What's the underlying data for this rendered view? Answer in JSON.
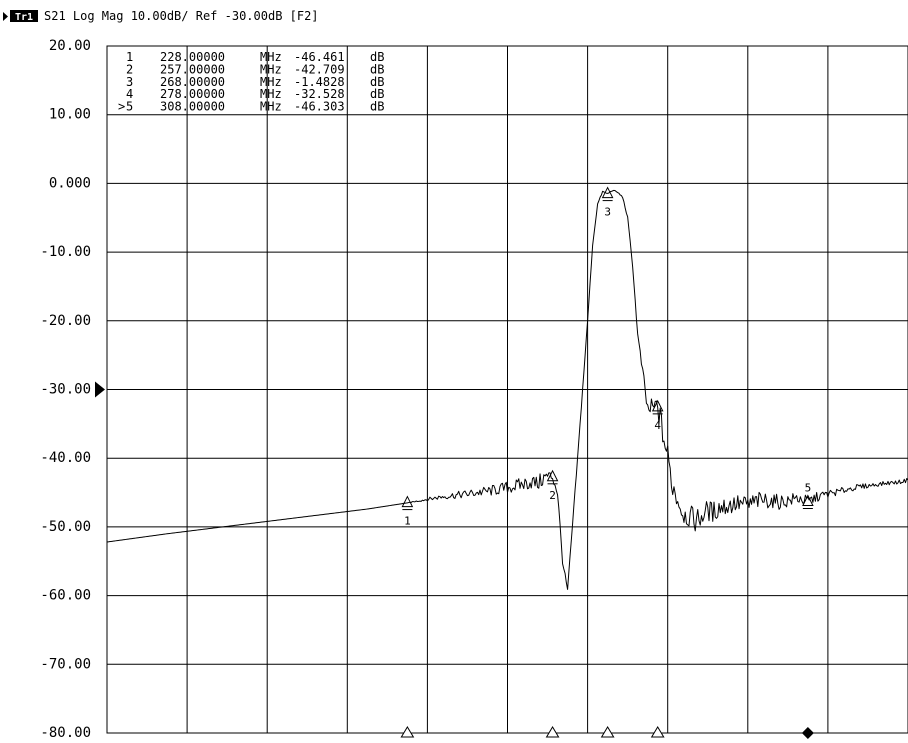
{
  "header": {
    "trace_badge": "Tr1",
    "trace_label": "S21 Log Mag 10.00dB/ Ref -30.00dB [F2]"
  },
  "colors": {
    "background": "#ffffff",
    "foreground": "#000000"
  },
  "icons": {
    "reference_marker": "triangle-right",
    "stimulus_marker": "triangle-up",
    "active_stimulus_marker": "filled-diamond"
  },
  "chart_data": {
    "type": "line",
    "title": "",
    "xlabel": "",
    "ylabel": "",
    "x_unit": "MHz",
    "y_unit": "dB",
    "xlim": [
      168,
      328
    ],
    "ylim": [
      -80,
      20
    ],
    "grid": true,
    "y_tick_values": [
      20,
      10,
      0,
      -10,
      -20,
      -30,
      -40,
      -50,
      -60,
      -70,
      -80
    ],
    "y_tick_labels": [
      "20.00",
      "10.00",
      "0.000",
      "-10.00",
      "-20.00",
      "-30.00",
      "-40.00",
      "-50.00",
      "-60.00",
      "-70.00",
      "-80.00"
    ],
    "reference_level": -30,
    "reference_marker_label": "",
    "series": [
      {
        "x": [
          168.0,
          180.0,
          190.0,
          200.0,
          210.0,
          220.0,
          228.0,
          235.0,
          240.0,
          245.0,
          250.0,
          253.0,
          254.0,
          255.0,
          256.0,
          257.0,
          258.0,
          259.0,
          260.0,
          262.0,
          264.0,
          265.0,
          266.0,
          267.0,
          268.0,
          269.0,
          270.0,
          271.0,
          272.0,
          273.0,
          274.0,
          276.0,
          278.0,
          280.0,
          281.0,
          282.0,
          283.0,
          284.0,
          285.0,
          286.0,
          287.0,
          288.0,
          289.0,
          290.0,
          292.0,
          294.0,
          296.0,
          298.0,
          300.0,
          302.0,
          304.0,
          306.0,
          308.0,
          310.0,
          312.0,
          314.0,
          316.0,
          318.0,
          320.0,
          322.0,
          324.0,
          326.0,
          328.0
        ],
        "y": [
          -52.2,
          -51.0,
          -50.1,
          -49.2,
          -48.3,
          -47.4,
          -46.5,
          -45.6,
          -45.2,
          -44.7,
          -44.0,
          -43.4,
          -43.8,
          -43.0,
          -42.6,
          -42.7,
          -45.0,
          -55.0,
          -59.2,
          -40.0,
          -20.0,
          -9.0,
          -3.0,
          -1.2,
          -1.5,
          -1.0,
          -1.3,
          -2.0,
          -5.0,
          -12.0,
          -22.0,
          -33.0,
          -32.5,
          -40.0,
          -44.0,
          -46.0,
          -48.0,
          -48.5,
          -48.8,
          -49.0,
          -48.2,
          -47.5,
          -48.0,
          -47.2,
          -46.9,
          -46.6,
          -46.8,
          -46.2,
          -46.1,
          -46.4,
          -46.2,
          -45.8,
          -46.3,
          -45.6,
          -45.2,
          -44.9,
          -44.5,
          -44.2,
          -44.0,
          -43.8,
          -43.6,
          -43.5,
          -43.2
        ],
        "noise_peak_to_peak_db": [
          0,
          0,
          0,
          0,
          0,
          0,
          0,
          0.8,
          1.2,
          1.6,
          2.0,
          2.2,
          2.2,
          2.5,
          2.0,
          1.8,
          1.5,
          0.8,
          0.6,
          0.5,
          0.3,
          0.2,
          0.2,
          0.2,
          0.2,
          0.2,
          0.2,
          0.2,
          0.3,
          0.4,
          0.6,
          2.6,
          3.6,
          4.8,
          4.0,
          3.2,
          2.8,
          3.2,
          3.6,
          3.8,
          3.4,
          3.0,
          3.2,
          3.4,
          3.0,
          2.6,
          2.8,
          2.6,
          2.4,
          2.2,
          2.0,
          1.8,
          1.6,
          1.4,
          1.2,
          1.0,
          0.9,
          0.8,
          0.7,
          0.6,
          0.6,
          0.6,
          0.6
        ]
      }
    ],
    "markers": [
      {
        "id": "1",
        "prefix": "",
        "freq": "228.00000",
        "freq_unit": "MHz",
        "value": "-46.461",
        "value_unit": "dB",
        "x": 228.0,
        "y": -46.461,
        "label": "1"
      },
      {
        "id": "2",
        "prefix": "",
        "freq": "257.00000",
        "freq_unit": "MHz",
        "value": "-42.709",
        "value_unit": "dB",
        "x": 257.0,
        "y": -42.709,
        "label": "2"
      },
      {
        "id": "3",
        "prefix": "",
        "freq": "268.00000",
        "freq_unit": "MHz",
        "value": "-1.4828",
        "value_unit": "dB",
        "x": 268.0,
        "y": -1.4828,
        "label": "3"
      },
      {
        "id": "4",
        "prefix": "",
        "freq": "278.00000",
        "freq_unit": "MHz",
        "value": "-32.528",
        "value_unit": "dB",
        "x": 278.0,
        "y": -32.528,
        "label": "4"
      },
      {
        "id": "5",
        "prefix": ">",
        "freq": "308.00000",
        "freq_unit": "MHz",
        "value": "-46.303",
        "value_unit": "dB",
        "x": 308.0,
        "y": -46.303,
        "label": "5"
      }
    ],
    "active_marker": "5"
  }
}
